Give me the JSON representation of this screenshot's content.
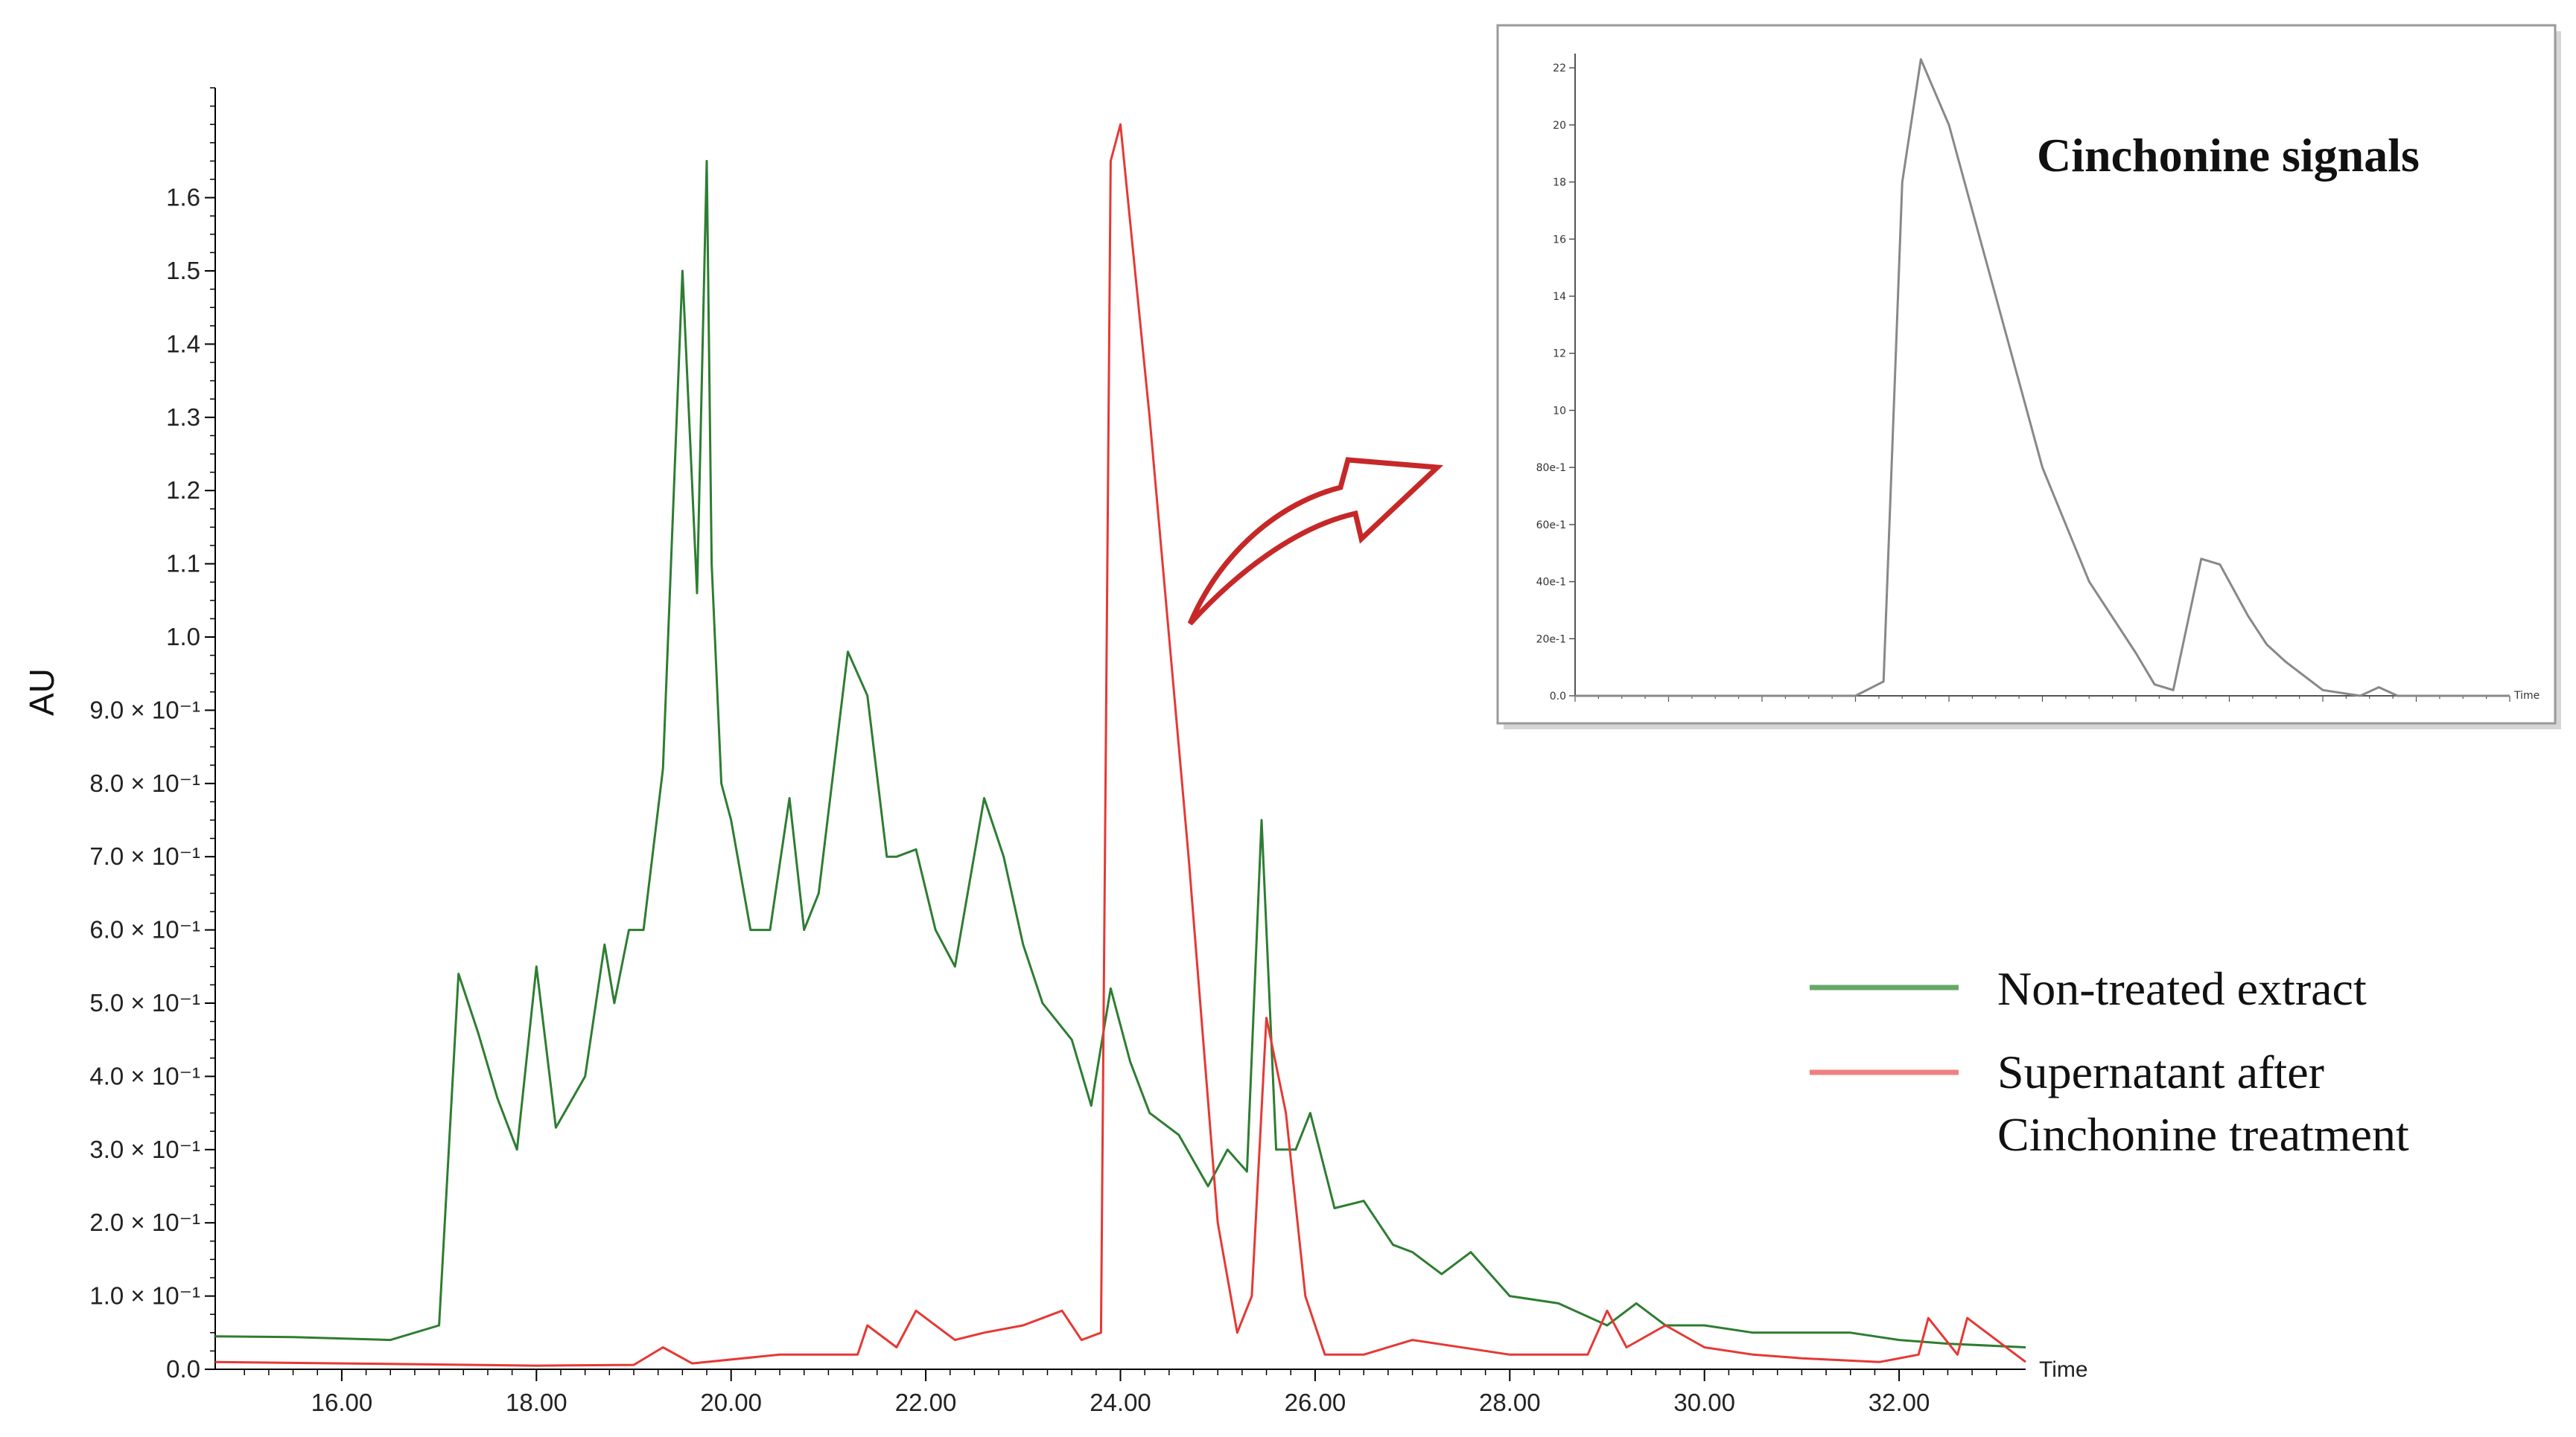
{
  "chart_data": [
    {
      "type": "line",
      "ylabel": "AU",
      "xlabel": "Time",
      "xlim": [
        14.7,
        33.3
      ],
      "ylim": [
        0.0,
        1.75
      ],
      "x_ticks": [
        16.0,
        18.0,
        20.0,
        22.0,
        24.0,
        26.0,
        28.0,
        30.0,
        32.0
      ],
      "x_tick_labels": [
        "16.00",
        "18.00",
        "20.00",
        "22.00",
        "24.00",
        "26.00",
        "28.00",
        "30.00",
        "32.00"
      ],
      "y_ticks": [
        0.0,
        0.1,
        0.2,
        0.3,
        0.4,
        0.5,
        0.6,
        0.7,
        0.8,
        0.9,
        1.0,
        1.1,
        1.2,
        1.3,
        1.4,
        1.5,
        1.6
      ],
      "y_tick_labels": [
        "0.0",
        "1.0 × 10⁻¹",
        "2.0 × 10⁻¹",
        "3.0 × 10⁻¹",
        "4.0 × 10⁻¹",
        "5.0 × 10⁻¹",
        "6.0 × 10⁻¹",
        "7.0 × 10⁻¹",
        "8.0 × 10⁻¹",
        "9.0 × 10⁻¹",
        "1.0",
        "1.1",
        "1.2",
        "1.3",
        "1.4",
        "1.5",
        "1.6"
      ],
      "legend_placement": "right",
      "series": [
        {
          "name": "Non-treated extract",
          "color": "#2e7d32",
          "x": [
            14.7,
            15.5,
            16.5,
            17.0,
            17.2,
            17.4,
            17.6,
            17.8,
            18.0,
            18.2,
            18.5,
            18.7,
            18.8,
            18.95,
            19.1,
            19.3,
            19.5,
            19.65,
            19.75,
            19.8,
            19.9,
            20.0,
            20.2,
            20.4,
            20.6,
            20.75,
            20.9,
            21.2,
            21.4,
            21.6,
            21.7,
            21.9,
            22.1,
            22.3,
            22.6,
            22.8,
            23.0,
            23.2,
            23.5,
            23.7,
            23.9,
            24.1,
            24.3,
            24.6,
            24.9,
            25.1,
            25.3,
            25.45,
            25.6,
            25.8,
            25.95,
            26.2,
            26.5,
            26.8,
            27.0,
            27.3,
            27.6,
            28.0,
            28.5,
            29.0,
            29.3,
            29.6,
            30.0,
            30.5,
            31.0,
            31.5,
            32.0,
            32.5,
            33.3
          ],
          "values": [
            0.045,
            0.044,
            0.04,
            0.06,
            0.54,
            0.46,
            0.37,
            0.3,
            0.55,
            0.33,
            0.4,
            0.58,
            0.5,
            0.6,
            0.6,
            0.82,
            1.5,
            1.06,
            1.65,
            1.1,
            0.8,
            0.75,
            0.6,
            0.6,
            0.78,
            0.6,
            0.65,
            0.98,
            0.92,
            0.7,
            0.7,
            0.71,
            0.6,
            0.55,
            0.78,
            0.7,
            0.58,
            0.5,
            0.45,
            0.36,
            0.52,
            0.42,
            0.35,
            0.32,
            0.25,
            0.3,
            0.27,
            0.75,
            0.3,
            0.3,
            0.35,
            0.22,
            0.23,
            0.17,
            0.16,
            0.13,
            0.16,
            0.1,
            0.09,
            0.06,
            0.09,
            0.06,
            0.06,
            0.05,
            0.05,
            0.05,
            0.04,
            0.035,
            0.03
          ]
        },
        {
          "name": "Supernatant after Cinchonine treatment",
          "color": "#e53935",
          "x": [
            14.7,
            16.0,
            18.0,
            19.0,
            19.3,
            19.6,
            20.5,
            21.3,
            21.4,
            21.7,
            21.9,
            22.3,
            22.6,
            23.0,
            23.4,
            23.6,
            23.8,
            23.9,
            24.0,
            24.3,
            24.7,
            25.0,
            25.2,
            25.35,
            25.5,
            25.7,
            25.9,
            26.1,
            26.5,
            27.0,
            28.0,
            28.8,
            29.0,
            29.2,
            29.6,
            30.0,
            30.5,
            31.0,
            31.8,
            32.2,
            32.3,
            32.6,
            32.7,
            33.3
          ],
          "values": [
            0.01,
            0.008,
            0.005,
            0.006,
            0.03,
            0.008,
            0.02,
            0.02,
            0.06,
            0.03,
            0.08,
            0.04,
            0.05,
            0.06,
            0.08,
            0.04,
            0.05,
            1.65,
            1.7,
            1.3,
            0.7,
            0.2,
            0.05,
            0.1,
            0.48,
            0.35,
            0.1,
            0.02,
            0.02,
            0.04,
            0.02,
            0.02,
            0.08,
            0.03,
            0.06,
            0.03,
            0.02,
            0.015,
            0.01,
            0.02,
            0.07,
            0.02,
            0.07,
            0.01
          ]
        }
      ]
    },
    {
      "type": "line",
      "title": "Cinchonine signals",
      "xlabel": "Time",
      "y_tick_labels": [
        "0.0",
        "20e-1",
        "40e-1",
        "60e-1",
        "80e-1",
        "10",
        "12",
        "14",
        "16",
        "18",
        "20",
        "22"
      ],
      "y_ticks": [
        0.0,
        0.2,
        0.4,
        0.6,
        0.8,
        1.0,
        1.2,
        1.4,
        1.6,
        1.8,
        2.0,
        2.2
      ],
      "ylim": [
        0.0,
        2.25
      ],
      "series": [
        {
          "color": "#888888",
          "x": [
            0.0,
            0.2,
            0.3,
            0.33,
            0.35,
            0.37,
            0.4,
            0.45,
            0.5,
            0.55,
            0.6,
            0.62,
            0.64,
            0.67,
            0.69,
            0.72,
            0.74,
            0.76,
            0.8,
            0.84,
            0.86,
            0.88,
            1.0
          ],
          "values": [
            0.0,
            0.0,
            0.0,
            0.05,
            1.8,
            2.23,
            2.0,
            1.4,
            0.8,
            0.4,
            0.15,
            0.04,
            0.02,
            0.48,
            0.46,
            0.28,
            0.18,
            0.12,
            0.02,
            0.0,
            0.03,
            0.0,
            0.0
          ]
        }
      ]
    }
  ]
}
